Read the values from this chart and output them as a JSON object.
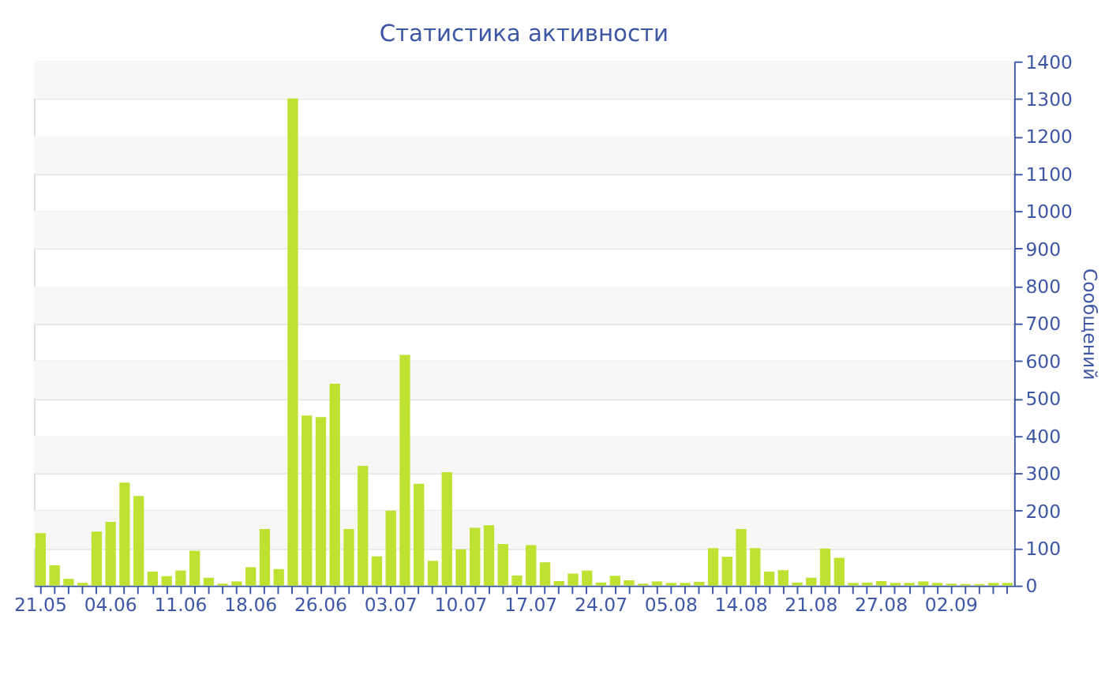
{
  "chart_data": {
    "type": "bar",
    "title": "Статистика активности",
    "ylabel": "Сообщений",
    "categories": [
      "21.05",
      null,
      null,
      null,
      null,
      "04.06",
      null,
      null,
      null,
      null,
      "11.06",
      null,
      null,
      null,
      null,
      "18.06",
      null,
      null,
      null,
      null,
      "26.06",
      null,
      null,
      null,
      null,
      "03.07",
      null,
      null,
      null,
      null,
      "10.07",
      null,
      null,
      null,
      null,
      "17.07",
      null,
      null,
      null,
      null,
      "24.07",
      null,
      null,
      null,
      null,
      "05.08",
      null,
      null,
      null,
      null,
      "14.08",
      null,
      null,
      null,
      null,
      "21.08",
      null,
      null,
      null,
      null,
      "27.08",
      null,
      null,
      null,
      null,
      "02.09",
      null,
      null,
      null,
      null
    ],
    "values": [
      140,
      54,
      18,
      7,
      144,
      170,
      275,
      239,
      37,
      25,
      40,
      93,
      21,
      5,
      11,
      49,
      151,
      44,
      1301,
      454,
      450,
      539,
      151,
      320,
      78,
      200,
      616,
      272,
      66,
      303,
      97,
      154,
      161,
      111,
      27,
      108,
      62,
      12,
      32,
      40,
      8,
      26,
      14,
      5,
      11,
      7,
      7,
      10,
      100,
      77,
      151,
      100,
      37,
      41,
      8,
      21,
      99,
      74,
      7,
      8,
      12,
      7,
      7,
      11,
      7,
      5,
      4,
      4,
      7,
      7
    ],
    "color": "#bde232",
    "ylim": [
      0,
      1400
    ],
    "yticks": [
      0,
      100,
      200,
      300,
      400,
      500,
      600,
      700,
      800,
      900,
      1000,
      1100,
      1200,
      1300,
      1400
    ],
    "grid": "y"
  }
}
